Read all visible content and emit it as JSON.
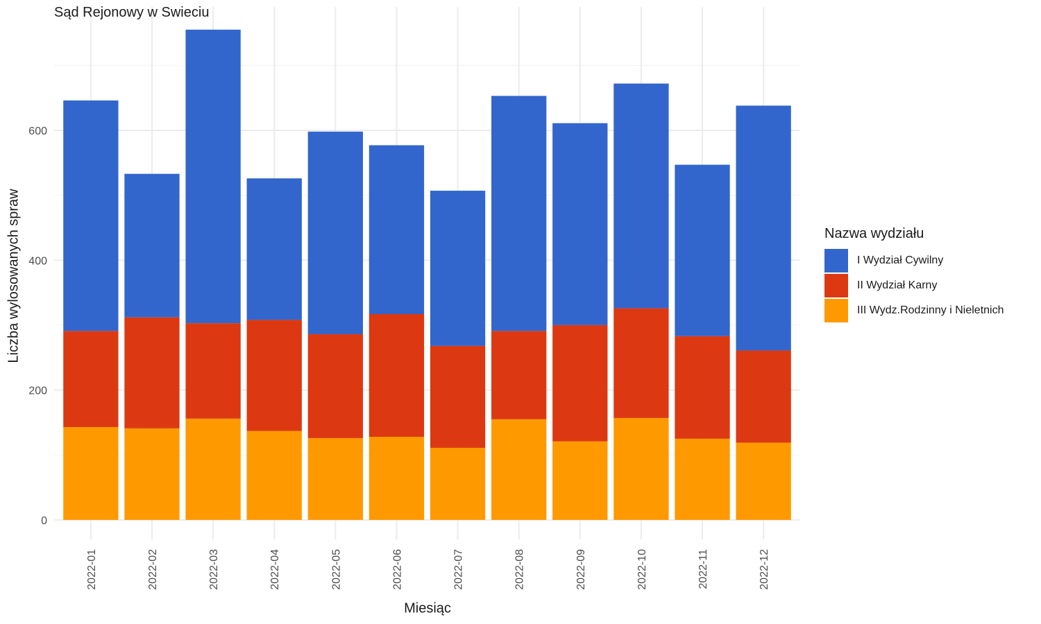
{
  "chart_data": {
    "type": "bar",
    "stacked": true,
    "title": "Sąd Rejonowy w Swieciu",
    "xlabel": "Miesiąc",
    "ylabel": "Liczba wylosowanych spraw",
    "ylim": [
      -30,
      790
    ],
    "yticks": [
      0,
      200,
      400,
      600
    ],
    "grid": true,
    "legend_position": "right",
    "legend_title": "Nazwa wydziału",
    "categories": [
      "2022-01",
      "2022-02",
      "2022-03",
      "2022-04",
      "2022-05",
      "2022-06",
      "2022-07",
      "2022-08",
      "2022-09",
      "2022-10",
      "2022-11",
      "2022-12"
    ],
    "series": [
      {
        "name": "III Wydz.Rodzinny i Nieletnich",
        "color": "#FF9900",
        "values": [
          143,
          141,
          156,
          137,
          126,
          128,
          111,
          155,
          121,
          157,
          125,
          119
        ]
      },
      {
        "name": "II Wydział Karny",
        "color": "#DC3912",
        "values": [
          148,
          171,
          147,
          171,
          160,
          189,
          157,
          136,
          179,
          169,
          158,
          142
        ]
      },
      {
        "name": "I Wydział Cywilny",
        "color": "#3366CC",
        "values": [
          355,
          221,
          452,
          218,
          312,
          260,
          239,
          362,
          311,
          346,
          264,
          377
        ]
      }
    ]
  },
  "legend_order": [
    0,
    1,
    2
  ]
}
